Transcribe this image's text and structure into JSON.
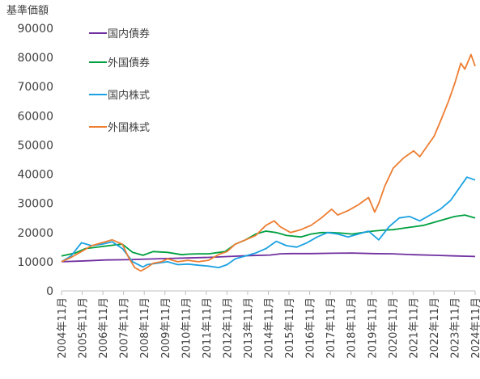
{
  "chart_data": {
    "type": "line",
    "ylabel": "基準価額",
    "ylim": [
      0,
      90000
    ],
    "yticks": [
      0,
      10000,
      20000,
      30000,
      40000,
      50000,
      60000,
      70000,
      80000,
      90000
    ],
    "xticks": [
      "2004年11月",
      "2005年11月",
      "2006年11月",
      "2007年11月",
      "2008年11月",
      "2009年11月",
      "2010年11月",
      "2011年11月",
      "2012年11月",
      "2013年11月",
      "2014年11月",
      "2015年11月",
      "2016年11月",
      "2017年11月",
      "2018年11月",
      "2019年11月",
      "2020年11月",
      "2021年11月",
      "2022年11月",
      "2023年11月",
      "2024年11月"
    ],
    "xrange": [
      2004.83,
      2025.0
    ],
    "grid": false,
    "legend_position": "top-left",
    "series": [
      {
        "name": "国内債券",
        "color": "#7030A0",
        "x": [
          2004.83,
          2006,
          2007,
          2008,
          2009,
          2010,
          2011,
          2012,
          2013,
          2014,
          2015,
          2015.5,
          2016,
          2017,
          2018,
          2019,
          2020,
          2021,
          2022,
          2023,
          2024,
          2025.0
        ],
        "y": [
          10000,
          10300,
          10600,
          10700,
          10900,
          11100,
          11300,
          11500,
          11800,
          12100,
          12300,
          12700,
          12800,
          12800,
          12900,
          13000,
          12800,
          12700,
          12400,
          12200,
          12000,
          11800
        ]
      },
      {
        "name": "外国債券",
        "color": "#00A040",
        "x": [
          2004.83,
          2005.5,
          2006,
          2006.8,
          2007.5,
          2007.8,
          2008.3,
          2008.8,
          2009.3,
          2010,
          2010.7,
          2011,
          2011.5,
          2012,
          2012.8,
          2013.3,
          2013.8,
          2014.3,
          2014.8,
          2015.3,
          2015.8,
          2016.5,
          2017,
          2017.5,
          2018,
          2018.5,
          2019,
          2019.5,
          2020,
          2020.5,
          2021,
          2021.5,
          2022,
          2022.5,
          2023,
          2023.5,
          2024,
          2024.5,
          2025.0
        ],
        "y": [
          12000,
          13000,
          14500,
          15200,
          15800,
          16000,
          13200,
          12200,
          13500,
          13200,
          12400,
          12600,
          12700,
          12700,
          13500,
          16000,
          17500,
          19500,
          20500,
          20000,
          19000,
          18500,
          19500,
          20000,
          20000,
          19800,
          19500,
          20000,
          20500,
          20800,
          21000,
          21500,
          22000,
          22500,
          23500,
          24500,
          25500,
          26000,
          25000
        ]
      },
      {
        "name": "国内株式",
        "color": "#1BA1E2",
        "x": [
          2004.83,
          2005.3,
          2005.8,
          2006.3,
          2006.8,
          2007.3,
          2007.8,
          2008.3,
          2008.8,
          2009.0,
          2009.5,
          2010,
          2010.5,
          2011,
          2011.5,
          2012,
          2012.5,
          2012.9,
          2013.3,
          2013.8,
          2014.3,
          2014.8,
          2015.3,
          2015.8,
          2016.3,
          2016.8,
          2017.3,
          2017.8,
          2018.3,
          2018.8,
          2019.3,
          2019.8,
          2020.3,
          2020.8,
          2021.3,
          2021.8,
          2022.3,
          2022.8,
          2023.3,
          2023.8,
          2024.3,
          2024.6,
          2025.0
        ],
        "y": [
          10000,
          12000,
          16500,
          15500,
          16000,
          16800,
          14500,
          10000,
          8200,
          9000,
          9500,
          10000,
          9000,
          9200,
          8800,
          8500,
          8000,
          9000,
          11000,
          12000,
          13000,
          14500,
          17000,
          15500,
          15000,
          16500,
          18500,
          20000,
          19500,
          18500,
          19500,
          20500,
          17500,
          22000,
          25000,
          25500,
          24000,
          26000,
          28000,
          31000,
          36000,
          39000,
          38000
        ]
      },
      {
        "name": "外国株式",
        "color": "#ED7D31",
        "x": [
          2004.83,
          2005.3,
          2005.8,
          2006.3,
          2006.8,
          2007.3,
          2007.8,
          2008.1,
          2008.4,
          2008.7,
          2009,
          2009.3,
          2009.7,
          2010,
          2010.5,
          2011,
          2011.5,
          2012,
          2012.5,
          2012.9,
          2013.3,
          2013.8,
          2014.3,
          2014.8,
          2015.2,
          2015.5,
          2016,
          2016.5,
          2017,
          2017.5,
          2018,
          2018.3,
          2018.8,
          2019.3,
          2019.8,
          2020.1,
          2020.3,
          2020.6,
          2021,
          2021.5,
          2022,
          2022.3,
          2022.7,
          2023,
          2023.3,
          2023.7,
          2024,
          2024.3,
          2024.5,
          2024.8,
          2025.0
        ],
        "y": [
          10000,
          11500,
          13500,
          15500,
          16500,
          17500,
          16000,
          11500,
          8000,
          6800,
          8000,
          9500,
          10000,
          11000,
          10000,
          10500,
          10000,
          10500,
          12500,
          13500,
          16000,
          17500,
          19000,
          22500,
          24000,
          22000,
          20000,
          21000,
          22500,
          25000,
          28000,
          26000,
          27500,
          29500,
          32000,
          27000,
          30000,
          36000,
          42000,
          45500,
          48000,
          46000,
          50000,
          53000,
          58000,
          65000,
          71000,
          78000,
          76000,
          81000,
          77000
        ]
      }
    ]
  }
}
